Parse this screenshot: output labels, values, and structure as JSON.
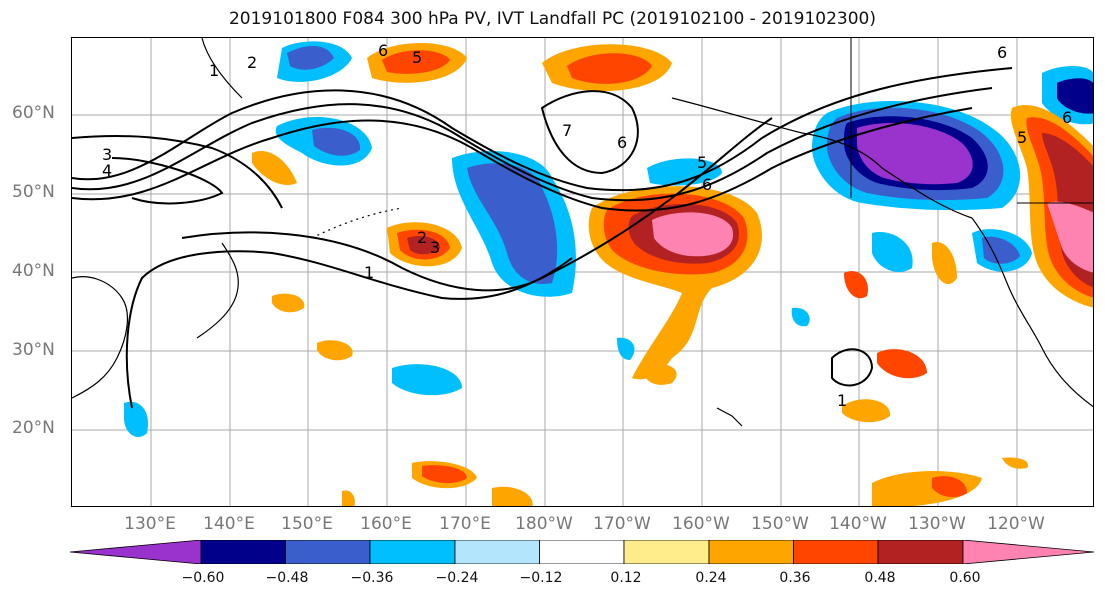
{
  "title": "2019101800 F084 300 hPa PV, IVT Landfall PC (2019102100 - 2019102300)",
  "map": {
    "lat_labels": [
      "60°N",
      "50°N",
      "40°N",
      "30°N",
      "20°N"
    ],
    "lon_labels": [
      "130°E",
      "140°E",
      "150°E",
      "160°E",
      "170°E",
      "180°W",
      "170°W",
      "160°W",
      "150°W",
      "140°W",
      "130°W",
      "120°W"
    ],
    "pv_contour_labels": [
      "1",
      "2",
      "3",
      "4",
      "5",
      "6",
      "7"
    ]
  },
  "colorbar": {
    "tick_labels": [
      "−0.60",
      "−0.48",
      "−0.36",
      "−0.24",
      "−0.12",
      "0.12",
      "0.24",
      "0.36",
      "0.48",
      "0.60"
    ],
    "colors": [
      "#9a32cd",
      "#00008b",
      "#3a5fcd",
      "#00bfff",
      "#b3e5fc",
      "#ffffff",
      "#ffec8b",
      "#ffa500",
      "#ff4500",
      "#b22222",
      "#ff83b0"
    ]
  }
}
